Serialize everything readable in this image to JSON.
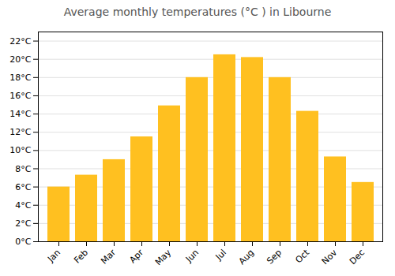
{
  "chart_data": {
    "type": "bar",
    "title": "Average monthly temperatures (°C ) in Libourne",
    "categories": [
      "Jan",
      "Feb",
      "Mar",
      "Apr",
      "May",
      "Jun",
      "Jul",
      "Aug",
      "Sep",
      "Oct",
      "Nov",
      "Dec"
    ],
    "values": [
      6.0,
      7.3,
      9.0,
      11.5,
      14.9,
      18.0,
      20.5,
      20.2,
      18.0,
      14.3,
      9.3,
      6.5
    ],
    "color": "#FFC020",
    "ylim": [
      0,
      23
    ],
    "yticks": [
      {
        "value": 0,
        "label": "0°C"
      },
      {
        "value": 2,
        "label": "2°C"
      },
      {
        "value": 4,
        "label": "4°C"
      },
      {
        "value": 6,
        "label": "6°C"
      },
      {
        "value": 8,
        "label": "8°C"
      },
      {
        "value": 10,
        "label": "10°C"
      },
      {
        "value": 12,
        "label": "12°C"
      },
      {
        "value": 14,
        "label": "14°C"
      },
      {
        "value": 16,
        "label": "16°C"
      },
      {
        "value": 18,
        "label": "18°C"
      },
      {
        "value": 20,
        "label": "20°C"
      },
      {
        "value": 22,
        "label": "22°C"
      }
    ],
    "grid": true
  }
}
